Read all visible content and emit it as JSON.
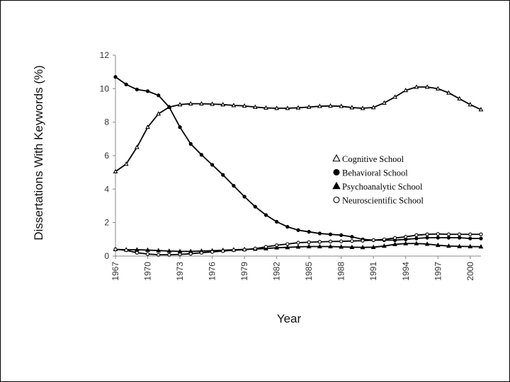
{
  "chart_data": {
    "type": "line",
    "title": "",
    "xlabel": "Year",
    "ylabel": "Dissertations With Keywords (%)",
    "ylim": [
      0,
      12
    ],
    "yticks": [
      "0",
      "2",
      "4",
      "6",
      "8",
      "10",
      "12"
    ],
    "xlim": [
      1967,
      2001
    ],
    "xticks": [
      "1967",
      "1970",
      "1973",
      "1976",
      "1979",
      "1982",
      "1985",
      "1988",
      "1991",
      "1994",
      "1997",
      "2000"
    ],
    "x": [
      1967,
      1968,
      1969,
      1970,
      1971,
      1972,
      1973,
      1974,
      1975,
      1976,
      1977,
      1978,
      1979,
      1980,
      1981,
      1982,
      1983,
      1984,
      1985,
      1986,
      1987,
      1988,
      1989,
      1990,
      1991,
      1992,
      1993,
      1994,
      1995,
      1996,
      1997,
      1998,
      1999,
      2000,
      2001
    ],
    "grid": false,
    "legend_position": "center-right",
    "series": [
      {
        "name": "Cognitive School",
        "marker": "open-triangle",
        "values": [
          5.05,
          5.5,
          6.5,
          7.7,
          8.5,
          8.9,
          9.05,
          9.1,
          9.1,
          9.08,
          9.05,
          9.0,
          8.97,
          8.9,
          8.85,
          8.83,
          8.83,
          8.86,
          8.9,
          8.95,
          8.97,
          8.95,
          8.87,
          8.83,
          8.88,
          9.15,
          9.5,
          9.9,
          10.1,
          10.1,
          10.0,
          9.75,
          9.4,
          9.05,
          8.75
        ]
      },
      {
        "name": "Behavioral School",
        "marker": "filled-circle",
        "values": [
          10.7,
          10.25,
          9.95,
          9.85,
          9.6,
          8.9,
          7.7,
          6.7,
          6.05,
          5.45,
          4.85,
          4.2,
          3.55,
          2.95,
          2.45,
          2.05,
          1.75,
          1.55,
          1.45,
          1.35,
          1.3,
          1.25,
          1.15,
          1.0,
          0.95,
          0.95,
          0.95,
          1.0,
          1.05,
          1.1,
          1.1,
          1.1,
          1.1,
          1.05,
          1.05
        ]
      },
      {
        "name": "Psychoanalytic School",
        "marker": "filled-triangle",
        "values": [
          0.4,
          0.38,
          0.38,
          0.36,
          0.33,
          0.3,
          0.28,
          0.28,
          0.3,
          0.32,
          0.35,
          0.38,
          0.4,
          0.42,
          0.45,
          0.5,
          0.52,
          0.55,
          0.57,
          0.57,
          0.57,
          0.55,
          0.53,
          0.52,
          0.53,
          0.6,
          0.7,
          0.75,
          0.75,
          0.72,
          0.65,
          0.6,
          0.58,
          0.57,
          0.56
        ]
      },
      {
        "name": "Neuroscientific School",
        "marker": "open-circle",
        "values": [
          0.4,
          0.35,
          0.2,
          0.12,
          0.08,
          0.08,
          0.1,
          0.14,
          0.2,
          0.25,
          0.3,
          0.35,
          0.38,
          0.45,
          0.55,
          0.65,
          0.72,
          0.8,
          0.83,
          0.85,
          0.87,
          0.88,
          0.9,
          0.92,
          0.95,
          1.0,
          1.08,
          1.15,
          1.25,
          1.3,
          1.32,
          1.3,
          1.3,
          1.3,
          1.3
        ]
      }
    ]
  }
}
